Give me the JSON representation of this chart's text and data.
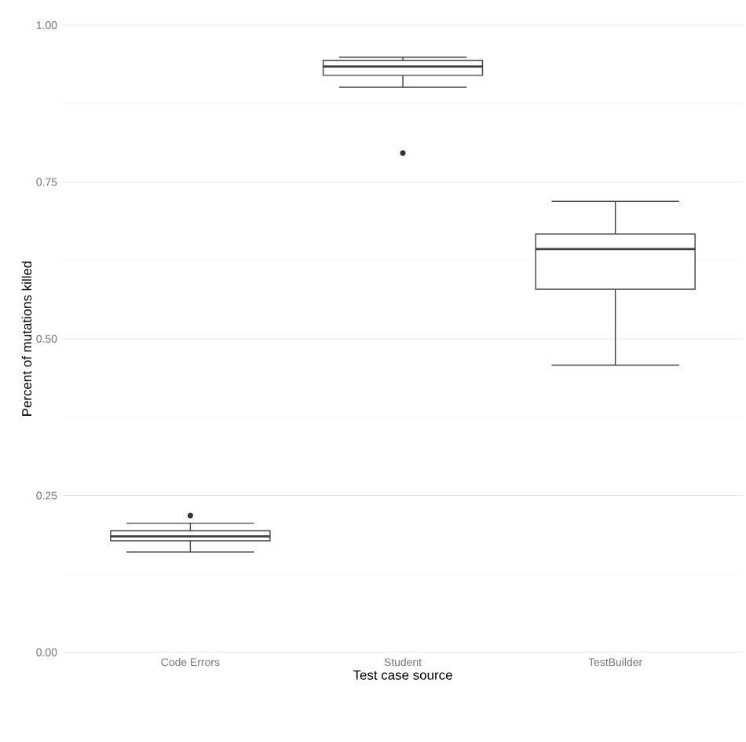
{
  "chart_data": {
    "type": "box",
    "xlabel": "Test case source",
    "ylabel": "Percent of mutations killed",
    "categories": [
      "Code Errors",
      "Student",
      "TestBuilder"
    ],
    "boxes": [
      {
        "low": 0.16,
        "q1": 0.178,
        "median": 0.185,
        "q3": 0.194,
        "high": 0.206,
        "outliers": [
          0.218
        ]
      },
      {
        "low": 0.901,
        "q1": 0.92,
        "median": 0.934,
        "q3": 0.944,
        "high": 0.949,
        "outliers": [
          0.796
        ]
      },
      {
        "low": 0.458,
        "q1": 0.579,
        "median": 0.643,
        "q3": 0.667,
        "high": 0.719
      }
    ],
    "ylim": [
      0,
      1
    ],
    "yticks": [
      {
        "value": 0,
        "label": "0.00"
      },
      {
        "value": 0.125,
        "label": null
      },
      {
        "value": 0.25,
        "label": "0.25"
      },
      {
        "value": 0.375,
        "label": null
      },
      {
        "value": 0.5,
        "label": "0.50"
      },
      {
        "value": 0.625,
        "label": null
      },
      {
        "value": 0.75,
        "label": "0.75"
      },
      {
        "value": 0.875,
        "label": null
      },
      {
        "value": 1,
        "label": "1.00"
      }
    ],
    "grid": "y",
    "marker": "circle"
  }
}
